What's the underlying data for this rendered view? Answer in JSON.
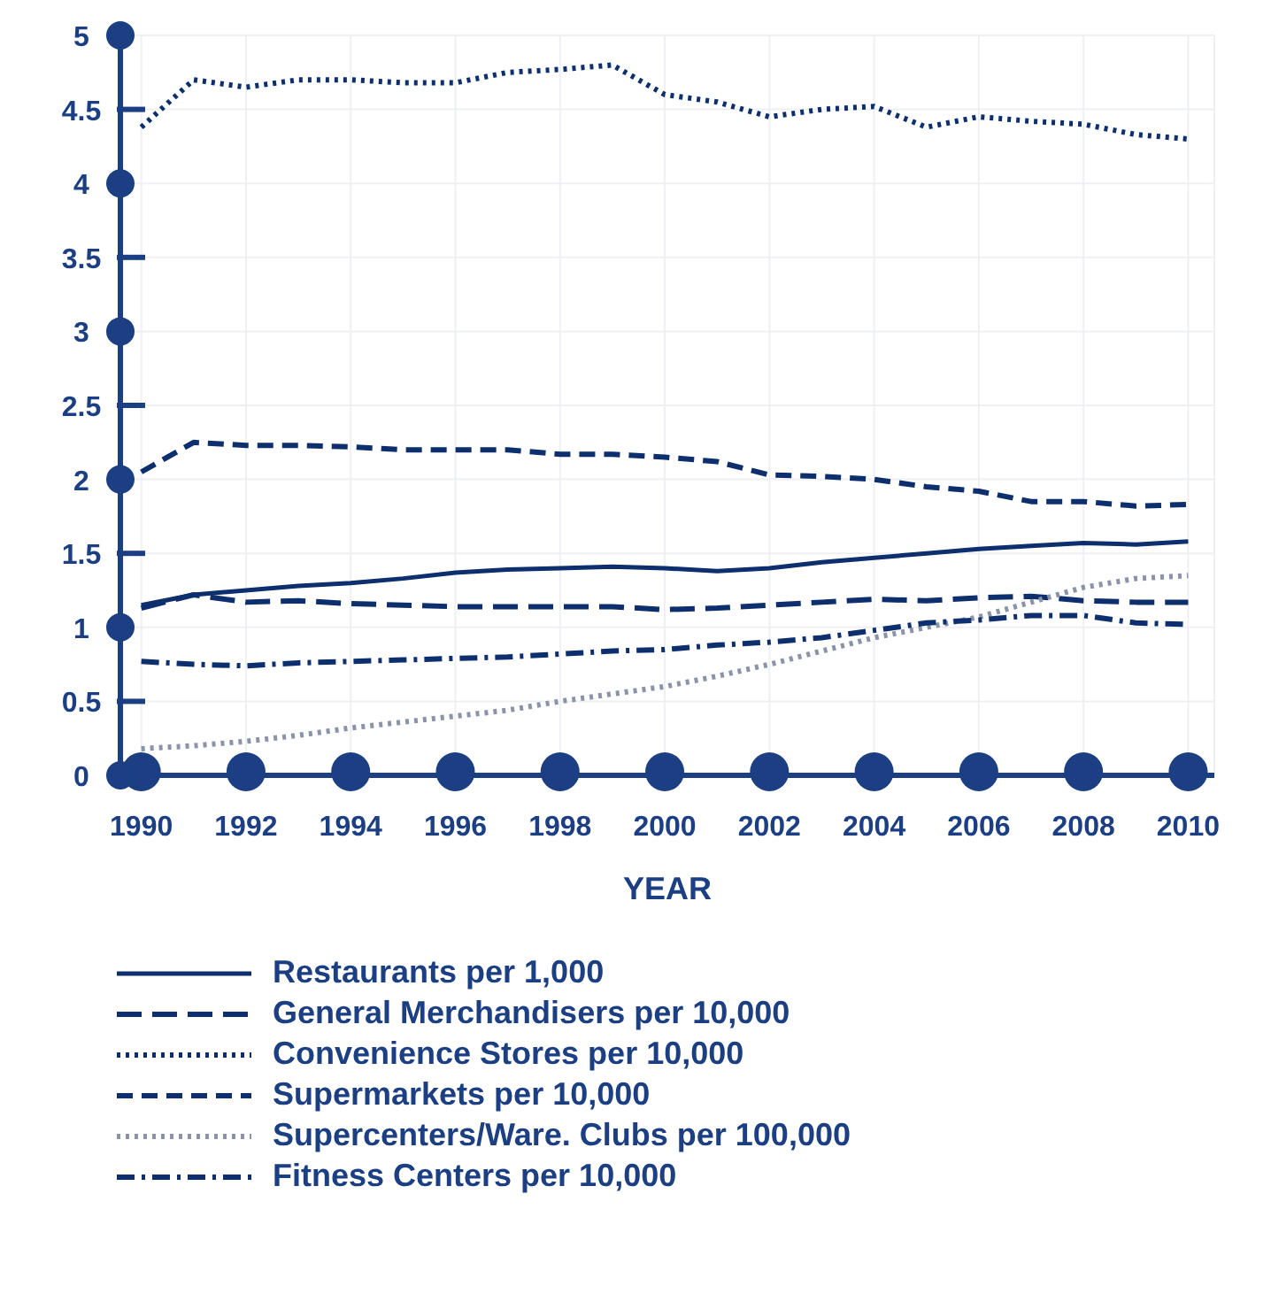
{
  "chart_data": {
    "type": "line",
    "xlabel": "YEAR",
    "x": [
      1990,
      1991,
      1992,
      1993,
      1994,
      1995,
      1996,
      1997,
      1998,
      1999,
      2000,
      2001,
      2002,
      2003,
      2004,
      2005,
      2006,
      2007,
      2008,
      2009,
      2010
    ],
    "xlim": [
      1989.6,
      2010.5
    ],
    "xticks": [
      1990,
      1992,
      1994,
      1996,
      1998,
      2000,
      2002,
      2004,
      2006,
      2008,
      2010
    ],
    "ylim": [
      0,
      5
    ],
    "yticks": [
      0,
      {
        "value": 0.5,
        "label": "0.5"
      },
      1,
      1.5,
      2,
      2.5,
      3,
      3.5,
      4,
      4.5,
      5
    ],
    "grid": true,
    "legend": "bottom",
    "marker": "none",
    "series": [
      {
        "name": "Restaurants per 1,000",
        "color": "#0d2f6e",
        "line_style": "solid",
        "values": [
          1.15,
          1.22,
          1.25,
          1.28,
          1.3,
          1.33,
          1.37,
          1.39,
          1.4,
          1.41,
          1.4,
          1.38,
          1.4,
          1.44,
          1.47,
          1.5,
          1.53,
          1.55,
          1.57,
          1.56,
          1.58
        ]
      },
      {
        "name": "General Merchandisers per 10,000",
        "color": "#0d2f6e",
        "line_style": "longdash",
        "values": [
          1.13,
          1.22,
          1.17,
          1.18,
          1.16,
          1.15,
          1.14,
          1.14,
          1.14,
          1.14,
          1.12,
          1.13,
          1.15,
          1.17,
          1.19,
          1.18,
          1.2,
          1.21,
          1.18,
          1.17,
          1.17
        ]
      },
      {
        "name": "Convenience Stores per 10,000",
        "color": "#0d2f6e",
        "line_style": "dotted",
        "values": [
          4.38,
          4.7,
          4.65,
          4.7,
          4.7,
          4.68,
          4.68,
          4.75,
          4.77,
          4.8,
          4.6,
          4.55,
          4.45,
          4.5,
          4.52,
          4.38,
          4.45,
          4.42,
          4.4,
          4.33,
          4.3
        ]
      },
      {
        "name": "Supermarkets per 10,000",
        "color": "#0d2f6e",
        "line_style": "dashed",
        "values": [
          2.05,
          2.25,
          2.23,
          2.23,
          2.22,
          2.2,
          2.2,
          2.2,
          2.17,
          2.17,
          2.15,
          2.12,
          2.03,
          2.02,
          2.0,
          1.95,
          1.92,
          1.85,
          1.85,
          1.82,
          1.83
        ]
      },
      {
        "name": "Supercenters/Ware. Clubs per 100,000",
        "color": "#8a93a8",
        "line_style": "dotted",
        "values": [
          0.18,
          0.2,
          0.23,
          0.27,
          0.32,
          0.36,
          0.4,
          0.44,
          0.5,
          0.55,
          0.6,
          0.67,
          0.75,
          0.84,
          0.93,
          1.0,
          1.07,
          1.17,
          1.27,
          1.33,
          1.35
        ]
      },
      {
        "name": "Fitness Centers per 10,000",
        "color": "#0d2f6e",
        "line_style": "dashdot",
        "values": [
          0.77,
          0.75,
          0.74,
          0.76,
          0.77,
          0.78,
          0.79,
          0.8,
          0.82,
          0.84,
          0.85,
          0.88,
          0.9,
          0.93,
          0.98,
          1.03,
          1.05,
          1.08,
          1.08,
          1.03,
          1.02
        ]
      }
    ]
  }
}
